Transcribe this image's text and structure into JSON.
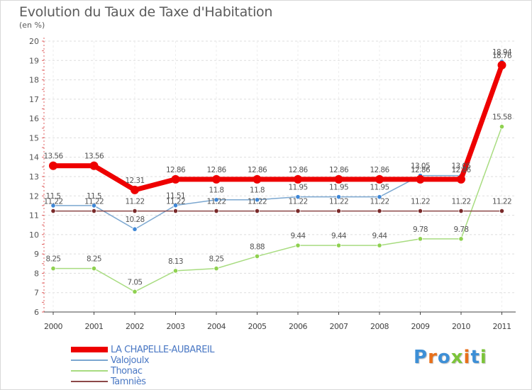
{
  "title": "Evolution du Taux de Taxe d'Habitation",
  "subtitle": "(en %)",
  "logo_text": "Proxiti",
  "chart_data": {
    "type": "line",
    "title": "Evolution du Taux de Taxe d'Habitation",
    "subtitle": "(en %)",
    "categories": [
      "2000",
      "2001",
      "2002",
      "2003",
      "2004",
      "2005",
      "2006",
      "2007",
      "2008",
      "2009",
      "2010",
      "2011"
    ],
    "ylim": [
      6,
      20
    ],
    "yticks": [
      6,
      7,
      8,
      9,
      10,
      11,
      12,
      13,
      14,
      15,
      16,
      17,
      18,
      19,
      20
    ],
    "grid": true,
    "legend_position": "bottom-left",
    "series": [
      {
        "name": "Valojoulx",
        "color": "#7ba7d0",
        "marker_color": "#3f87d6",
        "labels": [
          "11.5",
          "11.5",
          "10.28",
          "11.51",
          "11.8",
          "11.8",
          "11.95",
          "11.95",
          "11.95",
          "13.05",
          "13.05",
          "18.94"
        ],
        "values": [
          11.5,
          11.5,
          10.28,
          11.51,
          11.8,
          11.8,
          11.95,
          11.95,
          11.95,
          13.05,
          13.05,
          18.94
        ]
      },
      {
        "name": "Thonac",
        "color": "#a8dc80",
        "marker_color": "#8fd150",
        "labels": [
          "8.25",
          "8.25",
          "7.05",
          "8.13",
          "8.25",
          "8.88",
          "9.44",
          "9.44",
          "9.44",
          "9.78",
          "9.78",
          "15.58"
        ],
        "values": [
          8.25,
          8.25,
          7.05,
          8.13,
          8.25,
          8.88,
          9.44,
          9.44,
          9.44,
          9.78,
          9.78,
          15.58
        ]
      },
      {
        "name": "Tamniès",
        "color": "#8c4848",
        "marker_color": "#7a2a2a",
        "labels": [
          "11.22",
          "11.22",
          "11.22",
          "11.22",
          "11.22",
          "11.22",
          "11.22",
          "11.22",
          "11.22",
          "11.22",
          "11.22",
          "11.22"
        ],
        "values": [
          11.22,
          11.22,
          11.22,
          11.22,
          11.22,
          11.22,
          11.22,
          11.22,
          11.22,
          11.22,
          11.22,
          11.22
        ]
      },
      {
        "name": "LA CHAPELLE-AUBAREIL",
        "color": "#ee0000",
        "marker_color": "#ee0000",
        "labels": [
          "13.56",
          "13.56",
          "12.31",
          "12.86",
          "12.86",
          "12.86",
          "12.86",
          "12.86",
          "12.86",
          "12.86",
          "12.86",
          "18.76"
        ],
        "values": [
          13.56,
          13.56,
          12.31,
          12.86,
          12.86,
          12.86,
          12.86,
          12.86,
          12.86,
          12.86,
          12.86,
          18.76
        ]
      }
    ]
  },
  "legend": [
    {
      "label": "LA CHAPELLE-AUBAREIL",
      "color": "#ee0000",
      "thick": true
    },
    {
      "label": "Valojoulx",
      "color": "#7ba7d0",
      "thick": false
    },
    {
      "label": "Thonac",
      "color": "#a8dc80",
      "thick": false
    },
    {
      "label": "Tamniès",
      "color": "#8c4848",
      "thick": false
    }
  ]
}
